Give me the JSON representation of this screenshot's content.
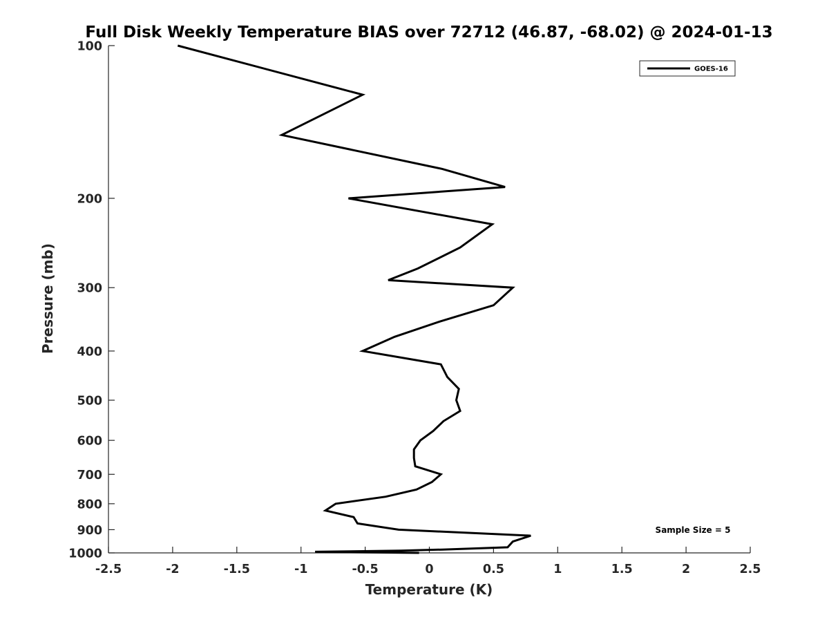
{
  "chart_data": {
    "type": "line",
    "title": "Full Disk Weekly Temperature BIAS over 72712 (46.87, -68.02) @ 2024-01-13",
    "xlabel": "Temperature (K)",
    "ylabel": "Pressure (mb)",
    "xlim": [
      -2.5,
      2.5
    ],
    "ylim": [
      100,
      1000
    ],
    "y_scale": "log",
    "y_reversed": true,
    "x_ticks": [
      -2.5,
      -2,
      -1.5,
      -1,
      -0.5,
      0,
      0.5,
      1,
      1.5,
      2,
      2.5
    ],
    "x_tick_labels": [
      "-2.5",
      "-2",
      "-1.5",
      "-1",
      "-0.5",
      "0",
      "0.5",
      "1",
      "1.5",
      "2",
      "2.5"
    ],
    "y_ticks": [
      100,
      200,
      300,
      400,
      500,
      600,
      700,
      800,
      900,
      1000
    ],
    "y_tick_labels": [
      "100",
      "200",
      "300",
      "400",
      "500",
      "600",
      "700",
      "800",
      "900",
      "1000"
    ],
    "grid": false,
    "legend_position": "top-right",
    "series": [
      {
        "name": "GOES-16",
        "color": "#000000",
        "points": [
          [
            -1.96,
            100
          ],
          [
            -0.52,
            125
          ],
          [
            -1.15,
            150
          ],
          [
            0.1,
            175
          ],
          [
            0.59,
            190
          ],
          [
            -0.63,
            200
          ],
          [
            0.49,
            225
          ],
          [
            0.24,
            250
          ],
          [
            -0.09,
            275
          ],
          [
            -0.32,
            290
          ],
          [
            0.65,
            300
          ],
          [
            0.5,
            325
          ],
          [
            0.08,
            350
          ],
          [
            -0.27,
            375
          ],
          [
            -0.52,
            400
          ],
          [
            0.09,
            425
          ],
          [
            0.14,
            450
          ],
          [
            0.23,
            475
          ],
          [
            0.21,
            500
          ],
          [
            0.24,
            525
          ],
          [
            0.11,
            550
          ],
          [
            0.03,
            575
          ],
          [
            -0.07,
            600
          ],
          [
            -0.12,
            625
          ],
          [
            -0.12,
            650
          ],
          [
            -0.11,
            675
          ],
          [
            0.09,
            700
          ],
          [
            0.02,
            725
          ],
          [
            -0.1,
            750
          ],
          [
            -0.34,
            775
          ],
          [
            -0.73,
            800
          ],
          [
            -0.81,
            825
          ],
          [
            -0.59,
            850
          ],
          [
            -0.56,
            875
          ],
          [
            -0.24,
            900
          ],
          [
            0.79,
            925
          ],
          [
            0.65,
            950
          ],
          [
            0.61,
            975
          ],
          [
            0.1,
            985
          ],
          [
            -0.22,
            990
          ],
          [
            -0.89,
            995
          ],
          [
            -0.08,
            1000
          ]
        ]
      }
    ],
    "legend_entries": [
      "GOES-16"
    ],
    "annotation": "Sample Size = 5"
  }
}
